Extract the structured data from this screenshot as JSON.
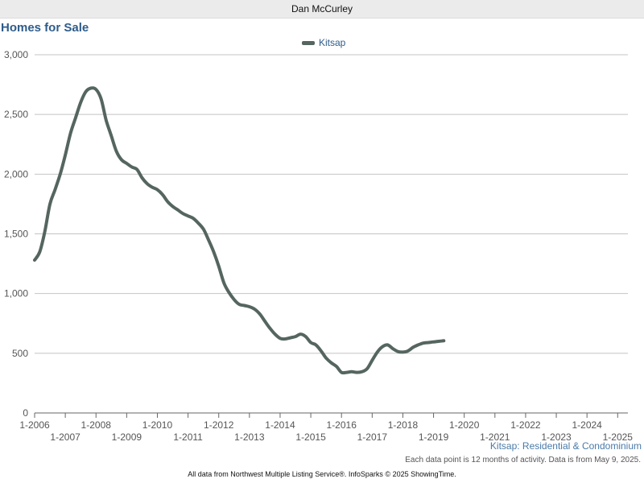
{
  "header": {
    "agent_name": "Dan McCurley"
  },
  "chart_data": {
    "type": "line",
    "title": "Homes for Sale",
    "subtitle": "Kitsap: Residential & Condominium",
    "note": "Each data point is 12 months of activity. Data is from May 9, 2025.",
    "footer": "All data from Northwest Multiple Listing Service®. InfoSparks © 2025 ShowingTime.",
    "ylim": [
      0,
      3000
    ],
    "yticks": [
      0,
      500,
      1000,
      1500,
      2000,
      2500,
      3000
    ],
    "ytick_labels": [
      "0",
      "500",
      "1,000",
      "1,500",
      "2,000",
      "2,500",
      "3,000"
    ],
    "xlim": [
      "2006-01",
      "2025-05"
    ],
    "xtick_labels": [
      "1-2006",
      "1-2007",
      "1-2008",
      "1-2009",
      "1-2010",
      "1-2011",
      "1-2012",
      "1-2013",
      "1-2014",
      "1-2015",
      "1-2016",
      "1-2017",
      "1-2018",
      "1-2019",
      "1-2020",
      "1-2021",
      "1-2022",
      "1-2023",
      "1-2024",
      "1-2025"
    ],
    "grid": true,
    "legend_position": "top-center",
    "colors": {
      "series": "#556560"
    },
    "series": [
      {
        "name": "Kitsap",
        "points": [
          [
            "2006-01",
            1280
          ],
          [
            "2006-03",
            1350
          ],
          [
            "2006-05",
            1520
          ],
          [
            "2006-07",
            1750
          ],
          [
            "2006-09",
            1870
          ],
          [
            "2006-11",
            2000
          ],
          [
            "2007-01",
            2160
          ],
          [
            "2007-03",
            2340
          ],
          [
            "2007-05",
            2470
          ],
          [
            "2007-07",
            2600
          ],
          [
            "2007-09",
            2690
          ],
          [
            "2007-11",
            2720
          ],
          [
            "2008-01",
            2710
          ],
          [
            "2008-03",
            2630
          ],
          [
            "2008-05",
            2450
          ],
          [
            "2008-07",
            2320
          ],
          [
            "2008-09",
            2190
          ],
          [
            "2008-11",
            2120
          ],
          [
            "2009-01",
            2090
          ],
          [
            "2009-03",
            2060
          ],
          [
            "2009-05",
            2040
          ],
          [
            "2009-07",
            1970
          ],
          [
            "2009-09",
            1920
          ],
          [
            "2009-11",
            1890
          ],
          [
            "2010-01",
            1870
          ],
          [
            "2010-03",
            1830
          ],
          [
            "2010-05",
            1770
          ],
          [
            "2010-07",
            1730
          ],
          [
            "2010-09",
            1700
          ],
          [
            "2010-11",
            1670
          ],
          [
            "2011-01",
            1650
          ],
          [
            "2011-03",
            1630
          ],
          [
            "2011-05",
            1590
          ],
          [
            "2011-07",
            1540
          ],
          [
            "2011-09",
            1450
          ],
          [
            "2011-11",
            1350
          ],
          [
            "2012-01",
            1230
          ],
          [
            "2012-03",
            1090
          ],
          [
            "2012-05",
            1010
          ],
          [
            "2012-07",
            950
          ],
          [
            "2012-09",
            910
          ],
          [
            "2012-11",
            900
          ],
          [
            "2013-01",
            890
          ],
          [
            "2013-03",
            870
          ],
          [
            "2013-05",
            830
          ],
          [
            "2013-07",
            770
          ],
          [
            "2013-09",
            710
          ],
          [
            "2013-11",
            660
          ],
          [
            "2014-01",
            625
          ],
          [
            "2014-03",
            620
          ],
          [
            "2014-05",
            630
          ],
          [
            "2014-07",
            640
          ],
          [
            "2014-09",
            660
          ],
          [
            "2014-11",
            640
          ],
          [
            "2015-01",
            590
          ],
          [
            "2015-03",
            570
          ],
          [
            "2015-05",
            520
          ],
          [
            "2015-07",
            460
          ],
          [
            "2015-09",
            420
          ],
          [
            "2015-11",
            390
          ],
          [
            "2016-01",
            340
          ],
          [
            "2016-03",
            340
          ],
          [
            "2016-05",
            345
          ],
          [
            "2016-07",
            340
          ],
          [
            "2016-09",
            345
          ],
          [
            "2016-11",
            370
          ],
          [
            "2017-01",
            440
          ],
          [
            "2017-03",
            510
          ],
          [
            "2017-05",
            555
          ],
          [
            "2017-07",
            570
          ],
          [
            "2017-09",
            540
          ],
          [
            "2017-11",
            515
          ],
          [
            "2018-01",
            510
          ],
          [
            "2018-03",
            520
          ],
          [
            "2018-05",
            550
          ],
          [
            "2018-07",
            570
          ],
          [
            "2018-09",
            585
          ],
          [
            "2018-11",
            590
          ],
          [
            "2019-01",
            595
          ],
          [
            "2019-03",
            600
          ],
          [
            "2019-05",
            605
          ]
        ]
      }
    ]
  }
}
